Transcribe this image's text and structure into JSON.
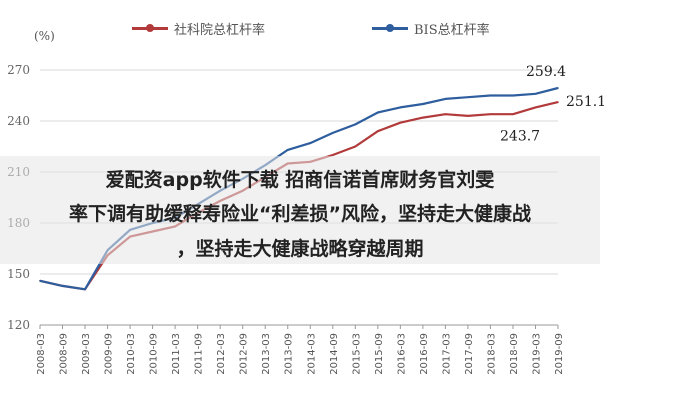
{
  "chart_data": {
    "type": "line",
    "unit_label": "(%)",
    "ylim": [
      120,
      270
    ],
    "yticks": [
      120,
      150,
      180,
      210,
      240,
      270
    ],
    "x": [
      "2008-03",
      "2008-09",
      "2009-03",
      "2009-09",
      "2010-03",
      "2010-09",
      "2011-03",
      "2011-09",
      "2012-03",
      "2012-09",
      "2013-03",
      "2013-09",
      "2014-03",
      "2014-09",
      "2015-03",
      "2015-09",
      "2016-03",
      "2016-09",
      "2017-03",
      "2017-09",
      "2018-03",
      "2018-09",
      "2019-03",
      "2019-09"
    ],
    "series": [
      {
        "name": "社科院总杠杆率",
        "color": "#b23a3a",
        "values": [
          146,
          143,
          141,
          161,
          172,
          175,
          178,
          186,
          193,
          199,
          207,
          215,
          216,
          220,
          225,
          234,
          239,
          242,
          244,
          243,
          244,
          244,
          248,
          251.1
        ]
      },
      {
        "name": "BIS总杠杆率",
        "color": "#2e5e9e",
        "values": [
          146,
          143,
          141,
          164,
          176,
          180,
          183,
          191,
          199,
          206,
          214,
          223,
          227,
          233,
          238,
          245,
          248,
          250,
          253,
          254,
          255,
          255,
          256,
          259.4
        ]
      }
    ],
    "annotations": [
      "259.4",
      "251.1",
      "243.7"
    ],
    "grid": true,
    "legend": "top"
  },
  "overlay": {
    "line1": "爱配资app软件下载 招商信诺首席财务官刘雯",
    "line2": "率下调有助缓释寿险业“利差损”风险，坚持走大健康战",
    "line3": "，坚持走大健康战略穿越周期"
  }
}
